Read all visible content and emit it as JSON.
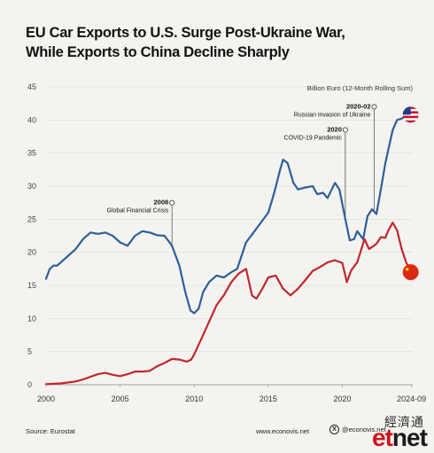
{
  "title_line1": "EU Car Exports to U.S. Surge Post-Ukraine War,",
  "title_line2": "While Exports to China Decline Sharply",
  "footer": {
    "source": "Source: Eurostat",
    "site": "www.econovis.net",
    "social": "@econovis.net",
    "watermark_cn": "經濟通",
    "watermark_logo_e": "et",
    "watermark_logo_rest": "net"
  },
  "colors": {
    "us": "#2d5f9a",
    "china": "#c0272d",
    "background": "#f4f3ef",
    "grid": "#dcdcd8"
  },
  "icons": {
    "us": "us-flag-icon",
    "china": "china-flag-icon"
  },
  "chart_data": {
    "type": "line",
    "title": "EU Car Exports to U.S. Surge Post-Ukraine War, While Exports to China Decline Sharply",
    "ylabel": "Billion Euro (12-Month Rolling Sum)",
    "xlabel": "",
    "ylim": [
      0,
      45
    ],
    "xlim": [
      2000,
      2024.75
    ],
    "yticks": [
      0,
      5,
      10,
      15,
      20,
      25,
      30,
      35,
      40,
      45
    ],
    "xticks": [
      "2000",
      "2005",
      "2010",
      "2015",
      "2020",
      "2024-09"
    ],
    "xtick_values": [
      2000,
      2005,
      2010,
      2015,
      2020,
      2024.67
    ],
    "grid": true,
    "series": [
      {
        "name": "U.S.",
        "color": "#2d5f9a",
        "points": [
          [
            2000.0,
            16.0
          ],
          [
            2000.25,
            17.5
          ],
          [
            2000.5,
            18.0
          ],
          [
            2000.75,
            18.0
          ],
          [
            2001.0,
            18.5
          ],
          [
            2001.5,
            19.5
          ],
          [
            2002.0,
            20.5
          ],
          [
            2002.5,
            22.0
          ],
          [
            2003.0,
            23.0
          ],
          [
            2003.5,
            22.8
          ],
          [
            2004.0,
            23.0
          ],
          [
            2004.5,
            22.5
          ],
          [
            2005.0,
            21.5
          ],
          [
            2005.5,
            21.0
          ],
          [
            2006.0,
            22.5
          ],
          [
            2006.5,
            23.2
          ],
          [
            2007.0,
            23.0
          ],
          [
            2007.5,
            22.6
          ],
          [
            2008.0,
            22.5
          ],
          [
            2008.5,
            21.0
          ],
          [
            2009.0,
            18.0
          ],
          [
            2009.4,
            14.0
          ],
          [
            2009.75,
            11.2
          ],
          [
            2010.0,
            10.8
          ],
          [
            2010.3,
            11.5
          ],
          [
            2010.6,
            14.0
          ],
          [
            2011.0,
            15.5
          ],
          [
            2011.5,
            16.5
          ],
          [
            2012.0,
            16.2
          ],
          [
            2012.5,
            17.0
          ],
          [
            2012.9,
            17.5
          ],
          [
            2013.2,
            19.5
          ],
          [
            2013.5,
            21.5
          ],
          [
            2014.0,
            23.0
          ],
          [
            2014.5,
            24.5
          ],
          [
            2015.0,
            26.0
          ],
          [
            2015.4,
            29.0
          ],
          [
            2015.8,
            32.5
          ],
          [
            2016.0,
            34.0
          ],
          [
            2016.3,
            33.5
          ],
          [
            2016.7,
            30.5
          ],
          [
            2017.0,
            29.5
          ],
          [
            2017.5,
            29.8
          ],
          [
            2018.0,
            30.0
          ],
          [
            2018.3,
            28.8
          ],
          [
            2018.7,
            29.0
          ],
          [
            2019.0,
            28.2
          ],
          [
            2019.5,
            30.5
          ],
          [
            2019.8,
            29.5
          ],
          [
            2020.2,
            25.0
          ],
          [
            2020.5,
            21.8
          ],
          [
            2020.8,
            22.0
          ],
          [
            2021.0,
            23.2
          ],
          [
            2021.4,
            22.0
          ],
          [
            2021.7,
            25.5
          ],
          [
            2022.0,
            26.5
          ],
          [
            2022.3,
            25.8
          ],
          [
            2022.6,
            29.5
          ],
          [
            2022.9,
            33.5
          ],
          [
            2023.1,
            35.5
          ],
          [
            2023.4,
            38.5
          ],
          [
            2023.7,
            40.0
          ],
          [
            2024.0,
            40.2
          ],
          [
            2024.3,
            40.7
          ],
          [
            2024.67,
            40.8
          ]
        ]
      },
      {
        "name": "China",
        "color": "#c0272d",
        "points": [
          [
            2000.0,
            0.1
          ],
          [
            2001.0,
            0.2
          ],
          [
            2002.0,
            0.5
          ],
          [
            2002.5,
            0.8
          ],
          [
            2003.0,
            1.2
          ],
          [
            2003.5,
            1.6
          ],
          [
            2004.0,
            1.8
          ],
          [
            2004.5,
            1.5
          ],
          [
            2005.0,
            1.3
          ],
          [
            2005.5,
            1.6
          ],
          [
            2006.0,
            2.0
          ],
          [
            2006.5,
            2.0
          ],
          [
            2007.0,
            2.1
          ],
          [
            2007.5,
            2.8
          ],
          [
            2008.0,
            3.3
          ],
          [
            2008.5,
            3.9
          ],
          [
            2009.0,
            3.8
          ],
          [
            2009.5,
            3.5
          ],
          [
            2009.8,
            3.8
          ],
          [
            2010.0,
            4.6
          ],
          [
            2010.5,
            7.0
          ],
          [
            2011.0,
            9.5
          ],
          [
            2011.5,
            12.0
          ],
          [
            2012.0,
            13.5
          ],
          [
            2012.5,
            15.5
          ],
          [
            2013.0,
            16.8
          ],
          [
            2013.5,
            17.5
          ],
          [
            2013.9,
            13.5
          ],
          [
            2014.2,
            13.0
          ],
          [
            2014.6,
            14.5
          ],
          [
            2015.0,
            16.2
          ],
          [
            2015.5,
            16.5
          ],
          [
            2016.0,
            14.5
          ],
          [
            2016.5,
            13.5
          ],
          [
            2017.0,
            14.5
          ],
          [
            2017.5,
            15.8
          ],
          [
            2018.0,
            17.2
          ],
          [
            2018.5,
            17.8
          ],
          [
            2019.0,
            18.5
          ],
          [
            2019.5,
            18.8
          ],
          [
            2020.0,
            18.4
          ],
          [
            2020.3,
            15.5
          ],
          [
            2020.6,
            17.3
          ],
          [
            2021.0,
            18.5
          ],
          [
            2021.5,
            22.0
          ],
          [
            2021.8,
            20.5
          ],
          [
            2022.0,
            20.8
          ],
          [
            2022.3,
            21.3
          ],
          [
            2022.6,
            22.3
          ],
          [
            2022.9,
            22.2
          ],
          [
            2023.1,
            23.3
          ],
          [
            2023.4,
            24.5
          ],
          [
            2023.7,
            23.3
          ],
          [
            2024.0,
            20.5
          ],
          [
            2024.3,
            18.5
          ],
          [
            2024.67,
            17.0
          ]
        ]
      }
    ],
    "annotations": [
      {
        "x": 2008.5,
        "y": 27.5,
        "label_bold": "2008",
        "label": "Global Financial Crisis"
      },
      {
        "x": 2020.2,
        "y": 38.5,
        "label_bold": "2020",
        "label": "COVID-19 Pandemic"
      },
      {
        "x": 2022.15,
        "y": 42.0,
        "label_bold": "2020-02",
        "label": "Russian invasion of Ukraine"
      }
    ]
  }
}
